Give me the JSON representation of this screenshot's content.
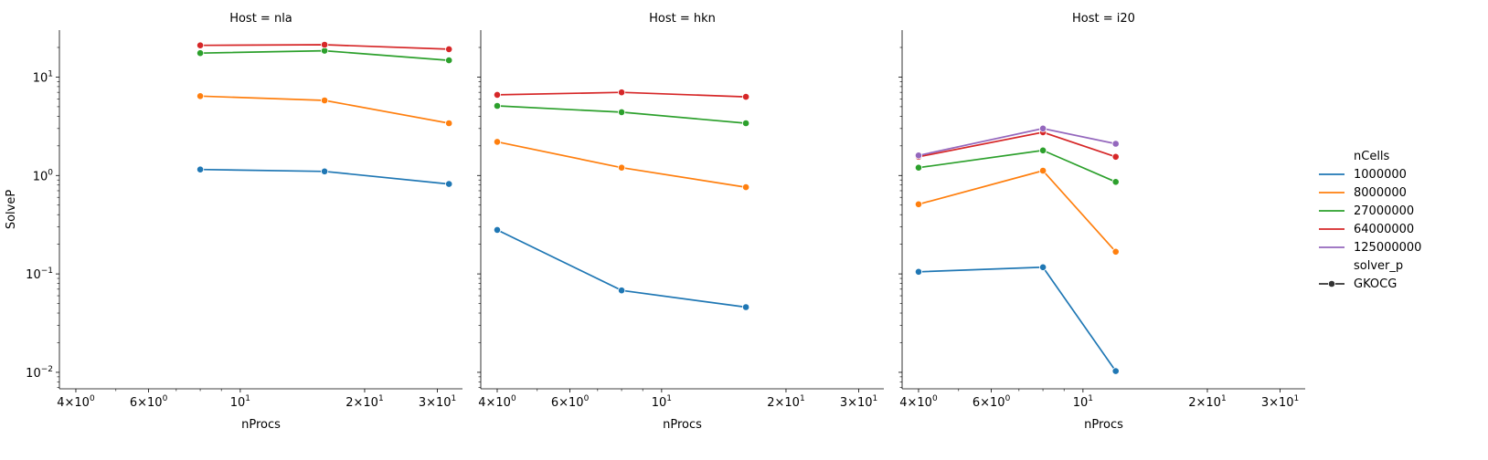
{
  "chart_data": {
    "type": "line",
    "facet_column": "Host",
    "xlabel": "nProcs",
    "ylabel": "SolveP",
    "xscale": "log",
    "yscale": "log",
    "xlim": [
      3.65,
      34.5
    ],
    "ylim": [
      0.0068,
      30
    ],
    "grid": false,
    "legend_placement": "right",
    "x_tick_values": [
      4,
      6,
      10,
      20,
      30
    ],
    "x_tick_labels": [
      {
        "base": "4×10",
        "exp": "0"
      },
      {
        "base": "6×10",
        "exp": "0"
      },
      {
        "base": "10",
        "exp": "1"
      },
      {
        "base": "2×10",
        "exp": "1"
      },
      {
        "base": "3×10",
        "exp": "1"
      }
    ],
    "y_tick_values": [
      0.01,
      0.1,
      1,
      10
    ],
    "y_tick_labels": [
      {
        "base": "10",
        "exp": "−2"
      },
      {
        "base": "10",
        "exp": "−1"
      },
      {
        "base": "10",
        "exp": "0"
      },
      {
        "base": "10",
        "exp": "1"
      }
    ],
    "legend": {
      "hue_title": "nCells",
      "style_title": "solver_p",
      "style_entry": "GKOCG",
      "hue_entries": [
        {
          "label": "1000000",
          "color": "#1f77b4"
        },
        {
          "label": "8000000",
          "color": "#ff7f0e"
        },
        {
          "label": "27000000",
          "color": "#2ca02c"
        },
        {
          "label": "64000000",
          "color": "#d62728"
        },
        {
          "label": "125000000",
          "color": "#9467bd"
        }
      ]
    },
    "panels": [
      {
        "title": "Host = nla",
        "x": [
          8,
          16,
          32
        ],
        "series": [
          {
            "name": "1000000",
            "color": "#1f77b4",
            "values": [
              1.15,
              1.1,
              0.82
            ]
          },
          {
            "name": "8000000",
            "color": "#ff7f0e",
            "values": [
              6.4,
              5.8,
              3.4
            ]
          },
          {
            "name": "27000000",
            "color": "#2ca02c",
            "values": [
              17.5,
              18.5,
              14.8
            ]
          },
          {
            "name": "64000000",
            "color": "#d62728",
            "values": [
              21.0,
              21.3,
              19.2
            ]
          }
        ]
      },
      {
        "title": "Host = hkn",
        "x": [
          4,
          8,
          16
        ],
        "series": [
          {
            "name": "1000000",
            "color": "#1f77b4",
            "values": [
              0.28,
              0.068,
              0.046
            ]
          },
          {
            "name": "8000000",
            "color": "#ff7f0e",
            "values": [
              2.2,
              1.2,
              0.76
            ]
          },
          {
            "name": "27000000",
            "color": "#2ca02c",
            "values": [
              5.1,
              4.4,
              3.4
            ]
          },
          {
            "name": "64000000",
            "color": "#d62728",
            "values": [
              6.6,
              7.0,
              6.3
            ]
          }
        ]
      },
      {
        "title": "Host = i20",
        "x": [
          4,
          8,
          12
        ],
        "series": [
          {
            "name": "1000000",
            "color": "#1f77b4",
            "values": [
              0.105,
              0.117,
              0.0103
            ]
          },
          {
            "name": "8000000",
            "color": "#ff7f0e",
            "values": [
              0.51,
              1.12,
              0.168
            ]
          },
          {
            "name": "27000000",
            "color": "#2ca02c",
            "values": [
              1.2,
              1.8,
              0.86
            ]
          },
          {
            "name": "64000000",
            "color": "#d62728",
            "values": [
              1.55,
              2.75,
              1.55
            ]
          },
          {
            "name": "125000000",
            "color": "#9467bd",
            "values": [
              1.6,
              3.0,
              2.1
            ]
          }
        ]
      }
    ]
  }
}
